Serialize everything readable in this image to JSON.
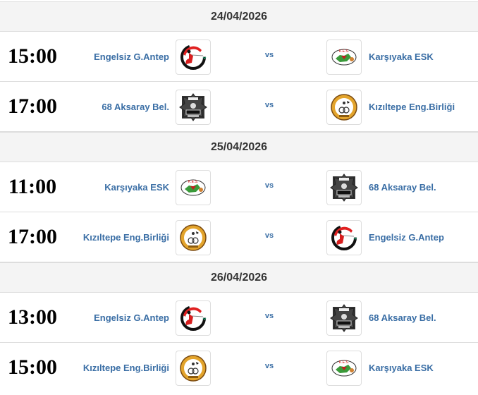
{
  "vs_label": "vs",
  "days": [
    {
      "date": "24/04/2026",
      "matches": [
        {
          "time": "15:00",
          "home": "Engelsiz G.Antep",
          "home_logo": "engelsiz",
          "away": "Karşıyaka ESK",
          "away_logo": "karsiyaka"
        },
        {
          "time": "17:00",
          "home": "68 Aksaray Bel.",
          "home_logo": "aksaray",
          "away": "Kızıltepe Eng.Birliği",
          "away_logo": "kiziltepe"
        }
      ]
    },
    {
      "date": "25/04/2026",
      "matches": [
        {
          "time": "11:00",
          "home": "Karşıyaka ESK",
          "home_logo": "karsiyaka",
          "away": "68 Aksaray Bel.",
          "away_logo": "aksaray"
        },
        {
          "time": "17:00",
          "home": "Kızıltepe Eng.Birliği",
          "home_logo": "kiziltepe",
          "away": "Engelsiz G.Antep",
          "away_logo": "engelsiz"
        }
      ]
    },
    {
      "date": "26/04/2026",
      "matches": [
        {
          "time": "13:00",
          "home": "Engelsiz G.Antep",
          "home_logo": "engelsiz",
          "away": "68 Aksaray Bel.",
          "away_logo": "aksaray"
        },
        {
          "time": "15:00",
          "home": "Kızıltepe Eng.Birliği",
          "home_logo": "kiziltepe",
          "away": "Karşıyaka ESK",
          "away_logo": "karsiyaka"
        }
      ]
    }
  ],
  "colors": {
    "team_link": "#3a6ea5",
    "date_bg": "#f4f4f4"
  }
}
